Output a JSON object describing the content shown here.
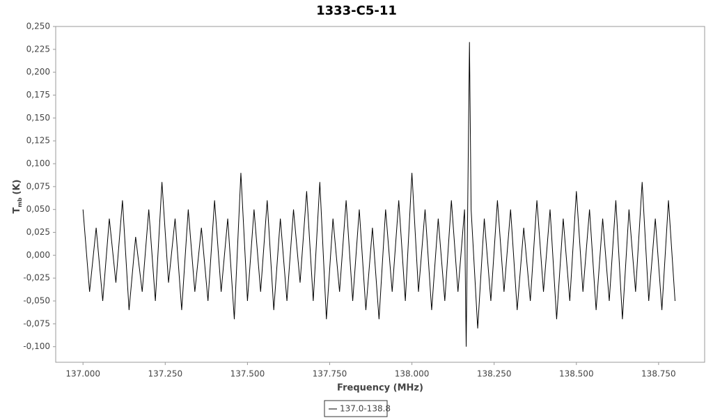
{
  "chart_data": {
    "type": "line",
    "title": "1333-C5-11",
    "xlabel": "Frequency (MHz)",
    "ylabel": "T",
    "ylabel_sub": "mb",
    "ylabel_unit": "(K)",
    "xlim": [
      136.917,
      138.89
    ],
    "ylim": [
      -0.117,
      0.25
    ],
    "xticks": [
      {
        "value": 137,
        "label": "137.000"
      },
      {
        "value": 137.25,
        "label": "137.250"
      },
      {
        "value": 137.5,
        "label": "137.500"
      },
      {
        "value": 137.75,
        "label": "137.750"
      },
      {
        "value": 138,
        "label": "138.000"
      },
      {
        "value": 138.25,
        "label": "138.250"
      },
      {
        "value": 138.5,
        "label": "138.500"
      },
      {
        "value": 138.75,
        "label": "138.750"
      }
    ],
    "yticks": [
      {
        "value": -0.1,
        "label": "-0,100"
      },
      {
        "value": -0.075,
        "label": "-0,075"
      },
      {
        "value": -0.05,
        "label": "-0,050"
      },
      {
        "value": -0.025,
        "label": "-0,025"
      },
      {
        "value": 0,
        "label": "0,000"
      },
      {
        "value": 0.025,
        "label": "0,025"
      },
      {
        "value": 0.05,
        "label": "0,050"
      },
      {
        "value": 0.075,
        "label": "0,075"
      },
      {
        "value": 0.1,
        "label": "0,100"
      },
      {
        "value": 0.125,
        "label": "0,125"
      },
      {
        "value": 0.15,
        "label": "0,150"
      },
      {
        "value": 0.175,
        "label": "0,175"
      },
      {
        "value": 0.2,
        "label": "0,200"
      },
      {
        "value": 0.225,
        "label": "0,225"
      },
      {
        "value": 0.25,
        "label": "0,250"
      }
    ],
    "grid": false,
    "legend": "bottom",
    "x": [
      137.0,
      137.02,
      137.04,
      137.06,
      137.08,
      137.1,
      137.12,
      137.14,
      137.16,
      137.18,
      137.2,
      137.22,
      137.24,
      137.26,
      137.28,
      137.3,
      137.32,
      137.34,
      137.36,
      137.38,
      137.4,
      137.42,
      137.44,
      137.46,
      137.48,
      137.5,
      137.52,
      137.54,
      137.56,
      137.58,
      137.6,
      137.62,
      137.64,
      137.66,
      137.68,
      137.7,
      137.72,
      137.74,
      137.76,
      137.78,
      137.8,
      137.82,
      137.84,
      137.86,
      137.88,
      137.9,
      137.92,
      137.94,
      137.96,
      137.98,
      138.0,
      138.02,
      138.04,
      138.06,
      138.08,
      138.1,
      138.12,
      138.14,
      138.16,
      138.165,
      138.175,
      138.18,
      138.2,
      138.22,
      138.24,
      138.26,
      138.28,
      138.3,
      138.32,
      138.34,
      138.36,
      138.38,
      138.4,
      138.42,
      138.44,
      138.46,
      138.48,
      138.5,
      138.52,
      138.54,
      138.56,
      138.58,
      138.6,
      138.62,
      138.64,
      138.66,
      138.68,
      138.7,
      138.72,
      138.74,
      138.76,
      138.78,
      138.8
    ],
    "series": [
      {
        "name": "137.0-138.8",
        "color": "#000000",
        "values": [
          0.05,
          -0.04,
          0.03,
          -0.05,
          0.04,
          -0.03,
          0.06,
          -0.06,
          0.02,
          -0.04,
          0.05,
          -0.05,
          0.08,
          -0.03,
          0.04,
          -0.06,
          0.05,
          -0.04,
          0.03,
          -0.05,
          0.06,
          -0.04,
          0.04,
          -0.07,
          0.09,
          -0.05,
          0.05,
          -0.04,
          0.06,
          -0.06,
          0.04,
          -0.05,
          0.05,
          -0.03,
          0.07,
          -0.05,
          0.08,
          -0.07,
          0.04,
          -0.04,
          0.06,
          -0.05,
          0.05,
          -0.06,
          0.03,
          -0.07,
          0.05,
          -0.04,
          0.06,
          -0.05,
          0.09,
          -0.04,
          0.05,
          -0.06,
          0.04,
          -0.05,
          0.06,
          -0.04,
          0.05,
          -0.1,
          0.233,
          0.05,
          -0.08,
          0.04,
          -0.05,
          0.06,
          -0.04,
          0.05,
          -0.06,
          0.03,
          -0.05,
          0.06,
          -0.04,
          0.05,
          -0.07,
          0.04,
          -0.05,
          0.07,
          -0.04,
          0.05,
          -0.06,
          0.04,
          -0.05,
          0.06,
          -0.07,
          0.05,
          -0.04,
          0.08,
          -0.05,
          0.04,
          -0.06,
          0.06,
          -0.05
        ]
      }
    ]
  }
}
